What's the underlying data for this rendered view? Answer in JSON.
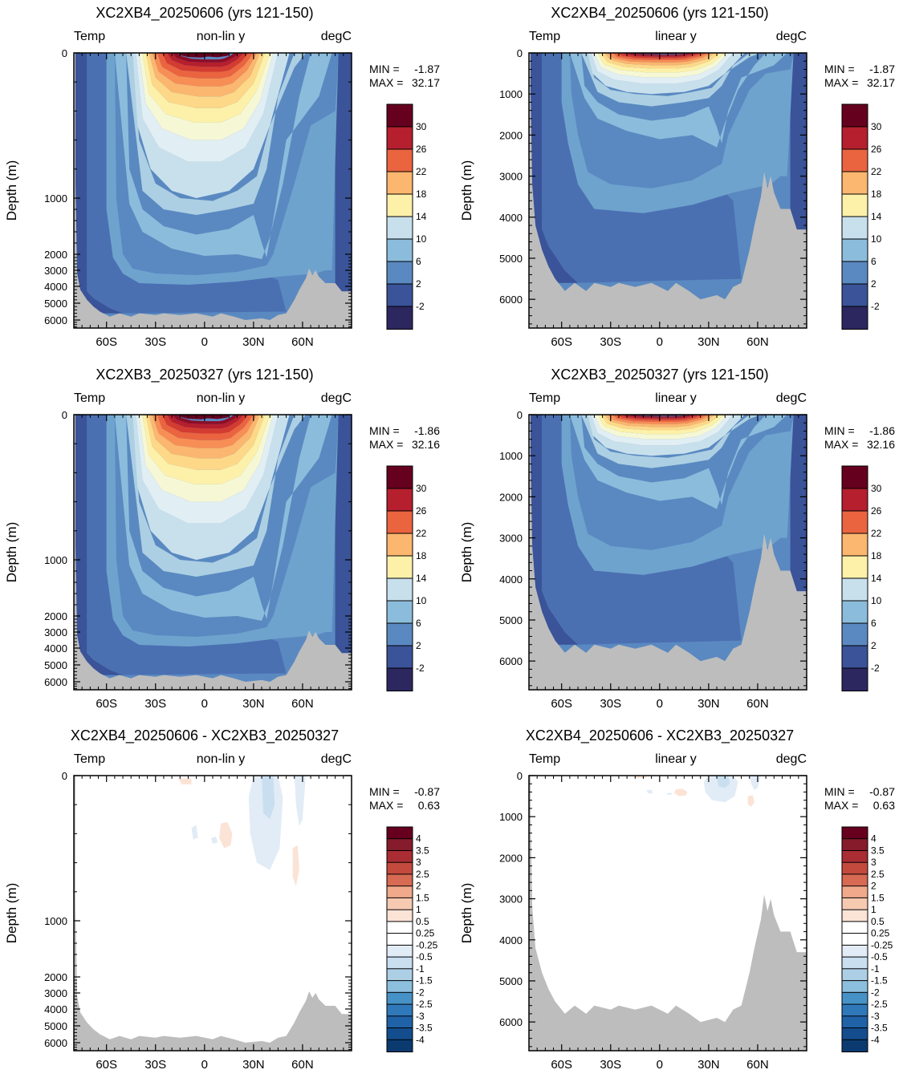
{
  "colors": {
    "land": "#bdbdbd",
    "frame": "#000000",
    "temp_levels": [
      "#2c275f",
      "#2b3b7c",
      "#3a5399",
      "#4b70b2",
      "#5a89c1",
      "#6ea3ce",
      "#8cbcdc",
      "#accfe3",
      "#c8e0ec",
      "#e1eef3",
      "#f6f8d5",
      "#fdf1a9",
      "#fdd888",
      "#fbb66f",
      "#f78e55",
      "#ea6440",
      "#d33c30",
      "#b51f2e",
      "#8c0d27",
      "#66001f"
    ],
    "diff_levels": [
      "#0b3a70",
      "#134d8e",
      "#1f62a8",
      "#2f79ba",
      "#4692c6",
      "#68a9d2",
      "#8cbfde",
      "#adcfe6",
      "#c9dff0",
      "#e2ecf6",
      "#ffffff",
      "#ffffff",
      "#fbe3d6",
      "#f6c9b1",
      "#f0a98a",
      "#e68a6a",
      "#d66a52",
      "#c44a3e",
      "#a92d33",
      "#861c2b",
      "#67001f"
    ]
  },
  "axis": {
    "ylabel": "Depth (m)",
    "xticks": [
      "60S",
      "30S",
      "0",
      "30N",
      "60N"
    ]
  },
  "panels": [
    {
      "title": "XC2XB4_20250606 (yrs 121-150)",
      "left_label": "Temp",
      "center_label": "non-lin y",
      "right_label": "degC",
      "min_label": "MIN =",
      "min_value": "-1.87",
      "max_label": "MAX =",
      "max_value": "32.17",
      "yticks": [
        "0",
        "1000",
        "2000",
        "3000",
        "4000",
        "5000",
        "6000"
      ],
      "legend": [
        "30",
        "26",
        "22",
        "18",
        "14",
        "10",
        "6",
        "2",
        "-2"
      ],
      "colorbar": "temp"
    },
    {
      "title": "XC2XB4_20250606 (yrs 121-150)",
      "left_label": "Temp",
      "center_label": "linear y",
      "right_label": "degC",
      "min_label": "MIN =",
      "min_value": "-1.87",
      "max_label": "MAX =",
      "max_value": "32.17",
      "yticks": [
        "0",
        "1000",
        "2000",
        "3000",
        "4000",
        "5000",
        "6000"
      ],
      "legend": [
        "30",
        "26",
        "22",
        "18",
        "14",
        "10",
        "6",
        "2",
        "-2"
      ],
      "colorbar": "temp"
    },
    {
      "title": "XC2XB3_20250327 (yrs 121-150)",
      "left_label": "Temp",
      "center_label": "non-lin y",
      "right_label": "degC",
      "min_label": "MIN =",
      "min_value": "-1.86",
      "max_label": "MAX =",
      "max_value": "32.16",
      "yticks": [
        "0",
        "1000",
        "2000",
        "3000",
        "4000",
        "5000",
        "6000"
      ],
      "legend": [
        "30",
        "26",
        "22",
        "18",
        "14",
        "10",
        "6",
        "2",
        "-2"
      ],
      "colorbar": "temp"
    },
    {
      "title": "XC2XB3_20250327 (yrs 121-150)",
      "left_label": "Temp",
      "center_label": "linear y",
      "right_label": "degC",
      "min_label": "MIN =",
      "min_value": "-1.86",
      "max_label": "MAX =",
      "max_value": "32.16",
      "yticks": [
        "0",
        "1000",
        "2000",
        "3000",
        "4000",
        "5000",
        "6000"
      ],
      "legend": [
        "30",
        "26",
        "22",
        "18",
        "14",
        "10",
        "6",
        "2",
        "-2"
      ],
      "colorbar": "temp"
    },
    {
      "title": "XC2XB4_20250606 - XC2XB3_20250327",
      "left_label": "Temp",
      "center_label": "non-lin y",
      "right_label": "degC",
      "min_label": "MIN =",
      "min_value": "-0.87",
      "max_label": "MAX =",
      "max_value": "0.63",
      "yticks": [
        "0",
        "1000",
        "2000",
        "3000",
        "4000",
        "5000",
        "6000"
      ],
      "legend": [
        "4",
        "3.5",
        "3",
        "2.5",
        "2",
        "1.5",
        "1",
        "0.5",
        "0.25",
        "-0.25",
        "-0.5",
        "-1",
        "-1.5",
        "-2",
        "-2.5",
        "-3",
        "-3.5",
        "-4"
      ],
      "colorbar": "diff"
    },
    {
      "title": "XC2XB4_20250606 - XC2XB3_20250327",
      "left_label": "Temp",
      "center_label": "linear y",
      "right_label": "degC",
      "min_label": "MIN =",
      "min_value": "-0.87",
      "max_label": "MAX =",
      "max_value": "0.63",
      "yticks": [
        "0",
        "1000",
        "2000",
        "3000",
        "4000",
        "5000",
        "6000"
      ],
      "legend": [
        "4",
        "3.5",
        "3",
        "2.5",
        "2",
        "1.5",
        "1",
        "0.5",
        "0.25",
        "-0.25",
        "-0.5",
        "-1",
        "-1.5",
        "-2",
        "-2.5",
        "-3",
        "-3.5",
        "-4"
      ],
      "colorbar": "diff"
    }
  ],
  "chart_data": [
    {
      "type": "heatmap",
      "title": "XC2XB4_20250606 (yrs 121-150)",
      "variable": "Temp",
      "units": "degC",
      "y_scale": "non-lin y",
      "xlabel": "",
      "ylabel": "Depth (m)",
      "xlim": [
        -80,
        90
      ],
      "ylim": [
        6700,
        0
      ],
      "x_ticks": [
        -60,
        -30,
        0,
        30,
        60
      ],
      "y_ticks": [
        0,
        1000,
        2000,
        3000,
        4000,
        5000,
        6000
      ],
      "min": -1.87,
      "max": 32.17,
      "contour_levels": [
        -2,
        0,
        2,
        4,
        6,
        8,
        10,
        12,
        14,
        16,
        18,
        20,
        22,
        24,
        26,
        28,
        30
      ]
    },
    {
      "type": "heatmap",
      "title": "XC2XB4_20250606 (yrs 121-150)",
      "variable": "Temp",
      "units": "degC",
      "y_scale": "linear y",
      "xlabel": "",
      "ylabel": "Depth (m)",
      "xlim": [
        -80,
        90
      ],
      "ylim": [
        6700,
        0
      ],
      "x_ticks": [
        -60,
        -30,
        0,
        30,
        60
      ],
      "y_ticks": [
        0,
        1000,
        2000,
        3000,
        4000,
        5000,
        6000
      ],
      "min": -1.87,
      "max": 32.17,
      "contour_levels": [
        -2,
        0,
        2,
        4,
        6,
        8,
        10,
        12,
        14,
        16,
        18,
        20,
        22,
        24,
        26,
        28,
        30
      ]
    },
    {
      "type": "heatmap",
      "title": "XC2XB3_20250327 (yrs 121-150)",
      "variable": "Temp",
      "units": "degC",
      "y_scale": "non-lin y",
      "xlabel": "",
      "ylabel": "Depth (m)",
      "xlim": [
        -80,
        90
      ],
      "ylim": [
        6700,
        0
      ],
      "x_ticks": [
        -60,
        -30,
        0,
        30,
        60
      ],
      "y_ticks": [
        0,
        1000,
        2000,
        3000,
        4000,
        5000,
        6000
      ],
      "min": -1.86,
      "max": 32.16,
      "contour_levels": [
        -2,
        0,
        2,
        4,
        6,
        8,
        10,
        12,
        14,
        16,
        18,
        20,
        22,
        24,
        26,
        28,
        30
      ]
    },
    {
      "type": "heatmap",
      "title": "XC2XB3_20250327 (yrs 121-150)",
      "variable": "Temp",
      "units": "degC",
      "y_scale": "linear y",
      "xlabel": "",
      "ylabel": "Depth (m)",
      "xlim": [
        -80,
        90
      ],
      "ylim": [
        6700,
        0
      ],
      "x_ticks": [
        -60,
        -30,
        0,
        30,
        60
      ],
      "y_ticks": [
        0,
        1000,
        2000,
        3000,
        4000,
        5000,
        6000
      ],
      "min": -1.86,
      "max": 32.16,
      "contour_levels": [
        -2,
        0,
        2,
        4,
        6,
        8,
        10,
        12,
        14,
        16,
        18,
        20,
        22,
        24,
        26,
        28,
        30
      ]
    },
    {
      "type": "heatmap",
      "title": "XC2XB4_20250606 - XC2XB3_20250327",
      "variable": "Temp",
      "units": "degC",
      "y_scale": "non-lin y",
      "xlabel": "",
      "ylabel": "Depth (m)",
      "xlim": [
        -80,
        90
      ],
      "ylim": [
        6700,
        0
      ],
      "x_ticks": [
        -60,
        -30,
        0,
        30,
        60
      ],
      "y_ticks": [
        0,
        1000,
        2000,
        3000,
        4000,
        5000,
        6000
      ],
      "min": -0.87,
      "max": 0.63,
      "contour_levels": [
        -4,
        -3.5,
        -3,
        -2.5,
        -2,
        -1.5,
        -1,
        -0.5,
        -0.25,
        0.25,
        0.5,
        1,
        1.5,
        2,
        2.5,
        3,
        3.5,
        4
      ]
    },
    {
      "type": "heatmap",
      "title": "XC2XB4_20250606 - XC2XB3_20250327",
      "variable": "Temp",
      "units": "degC",
      "y_scale": "linear y",
      "xlabel": "",
      "ylabel": "Depth (m)",
      "xlim": [
        -80,
        90
      ],
      "ylim": [
        6700,
        0
      ],
      "x_ticks": [
        -60,
        -30,
        0,
        30,
        60
      ],
      "y_ticks": [
        0,
        1000,
        2000,
        3000,
        4000,
        5000,
        6000
      ],
      "min": -0.87,
      "max": 0.63,
      "contour_levels": [
        -4,
        -3.5,
        -3,
        -2.5,
        -2,
        -1.5,
        -1,
        -0.5,
        -0.25,
        0.25,
        0.5,
        1,
        1.5,
        2,
        2.5,
        3,
        3.5,
        4
      ]
    }
  ]
}
